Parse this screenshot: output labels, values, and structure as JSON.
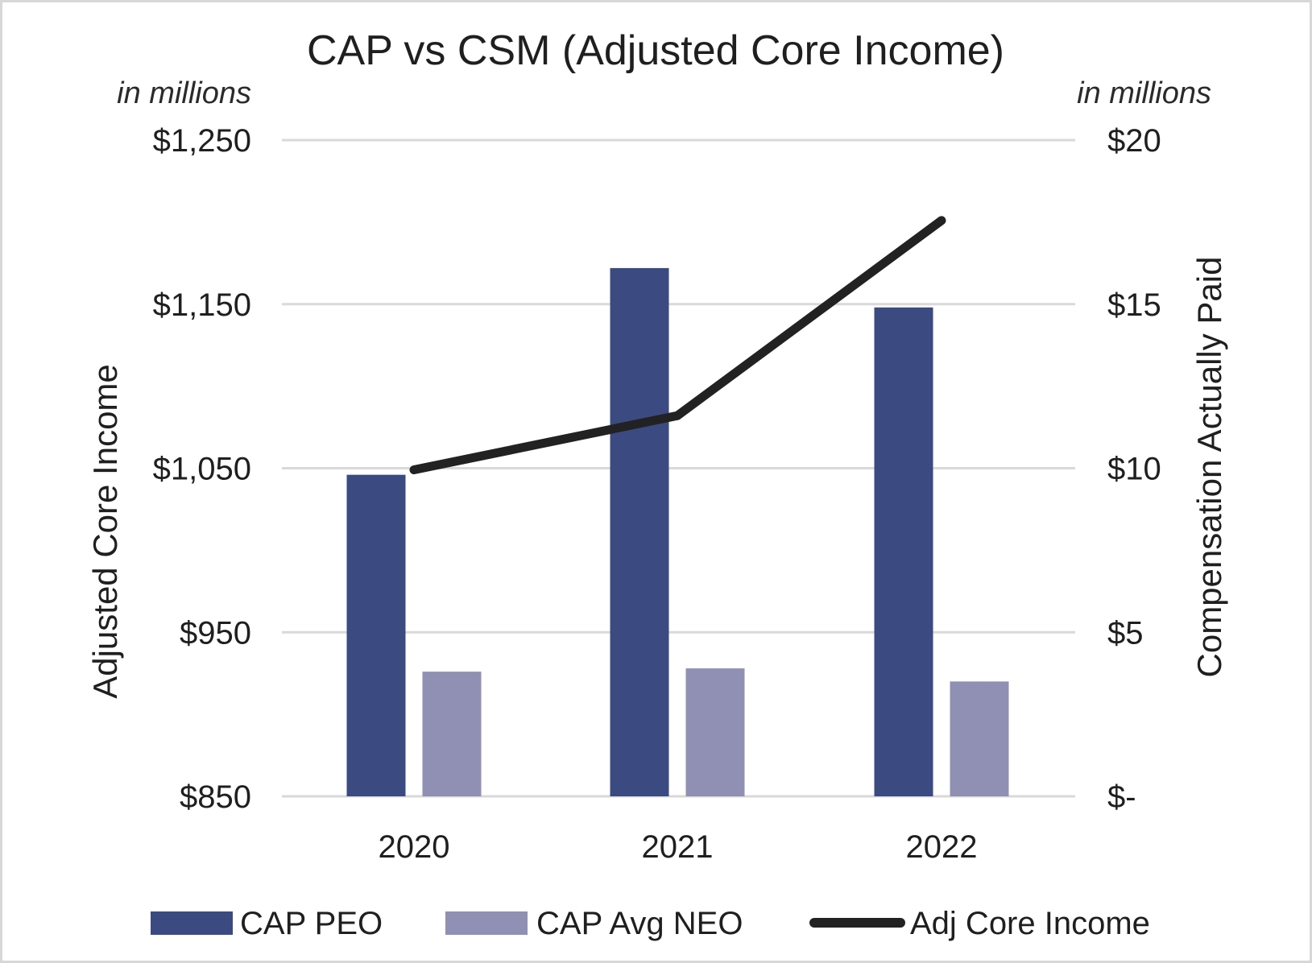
{
  "chart_data": {
    "type": "bar",
    "title": "CAP vs CSM (Adjusted Core Income)",
    "units_left": "in millions",
    "units_right": "in millions",
    "categories": [
      "2020",
      "2021",
      "2022"
    ],
    "ylabel_left": "Adjusted Core Income",
    "ylabel_right": "Compensation Actually Paid",
    "left_axis": {
      "range": [
        850,
        1250
      ],
      "ticks": [
        1250,
        1150,
        1050,
        950,
        850
      ],
      "tick_labels": [
        "$1,250",
        "$1,150",
        "$1,050",
        "$950",
        "$850"
      ]
    },
    "right_axis": {
      "range": [
        0,
        20
      ],
      "ticks": [
        20,
        15,
        10,
        5,
        0
      ],
      "tick_labels": [
        "$20",
        "$15",
        "$10",
        "$5",
        "$-"
      ]
    },
    "series": [
      {
        "name": "CAP PEO",
        "type": "bar",
        "axis": "right",
        "color": "#3c4a82",
        "values": [
          9.8,
          16.1,
          14.9
        ]
      },
      {
        "name": "CAP Avg NEO",
        "type": "bar",
        "axis": "right",
        "color": "#9090b4",
        "values": [
          3.8,
          3.9,
          3.5
        ]
      },
      {
        "name": "Adj Core Income",
        "type": "line",
        "axis": "left",
        "color": "#222222",
        "values": [
          1049,
          1082,
          1201
        ]
      }
    ],
    "grid": true,
    "legend_position": "bottom"
  }
}
